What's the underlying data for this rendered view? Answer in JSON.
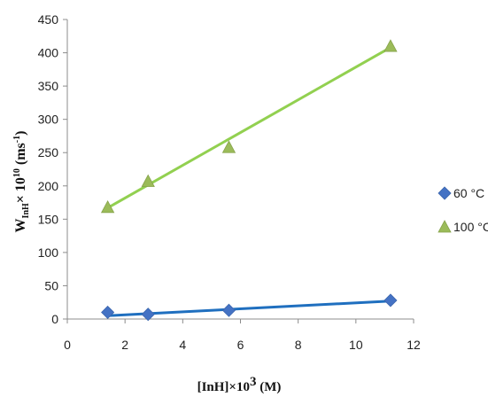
{
  "chart_data": {
    "type": "scatter",
    "title": "",
    "xlabel": {
      "base": "[InH]×10",
      "sup": "3",
      "unit": " (M)"
    },
    "ylabel": {
      "base": "W",
      "sub": "InH",
      "mid": "× 10",
      "sup": "10",
      "unit": " (ms",
      "unitsup": "-1",
      "close": ")"
    },
    "xlim": [
      0,
      12
    ],
    "ylim": [
      0,
      450
    ],
    "x_ticks": [
      "0",
      "2",
      "4",
      "6",
      "8",
      "10",
      "12"
    ],
    "y_ticks": [
      "0",
      "50",
      "100",
      "150",
      "200",
      "250",
      "300",
      "350",
      "400",
      "450"
    ],
    "grid": false,
    "legend_position": "right",
    "series": [
      {
        "name": "60 °C",
        "marker": "diamond",
        "color": "#4472C4",
        "trend_color": "#1F6FBF",
        "x": [
          1.4,
          2.8,
          5.6,
          11.2
        ],
        "y": [
          10,
          7,
          13,
          28
        ],
        "trendline": {
          "x": [
            1.4,
            11.2
          ],
          "y": [
            5,
            27
          ]
        }
      },
      {
        "name": "100 °C",
        "marker": "triangle",
        "color": "#9BBB59",
        "trend_color": "#92D050",
        "x": [
          1.4,
          2.8,
          5.6,
          11.2
        ],
        "y": [
          168,
          207,
          258,
          410
        ],
        "trendline": {
          "x": [
            1.4,
            11.2
          ],
          "y": [
            167,
            408
          ]
        }
      }
    ]
  }
}
